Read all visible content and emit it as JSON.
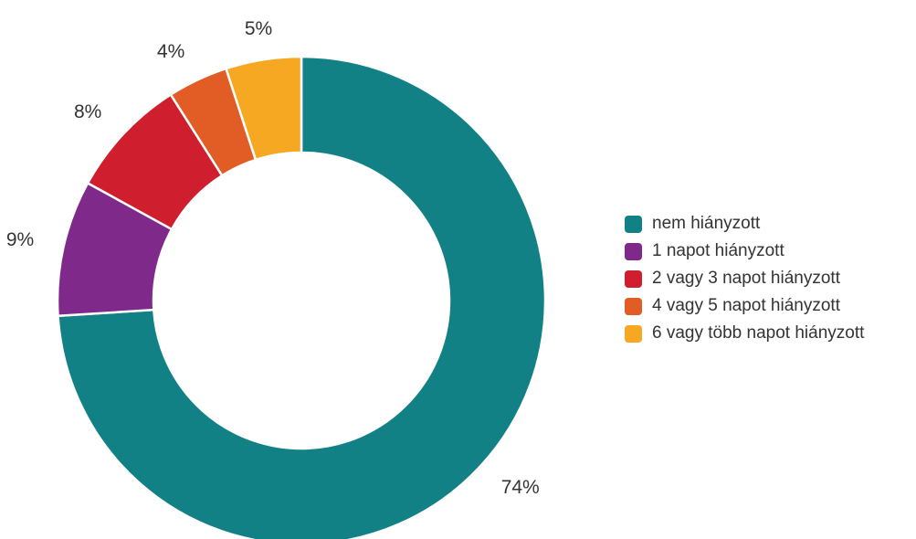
{
  "chart_data": {
    "type": "pie",
    "donut": true,
    "legend_position": "right",
    "slices": [
      {
        "label": "nem hiányzott",
        "value": 74,
        "value_label": "74%",
        "color": "#128185"
      },
      {
        "label": "1 napot hiányzott",
        "value": 9,
        "value_label": "9%",
        "color": "#7f2a8a"
      },
      {
        "label": "2 vagy 3 napot hiányzott",
        "value": 8,
        "value_label": "8%",
        "color": "#cf1f2e"
      },
      {
        "label": "4 vagy 5 napot hiányzott",
        "value": 4,
        "value_label": "4%",
        "color": "#e25c26"
      },
      {
        "label": "6 vagy több napot hiányzott",
        "value": 5,
        "value_label": "5%",
        "color": "#f6a823"
      }
    ]
  }
}
